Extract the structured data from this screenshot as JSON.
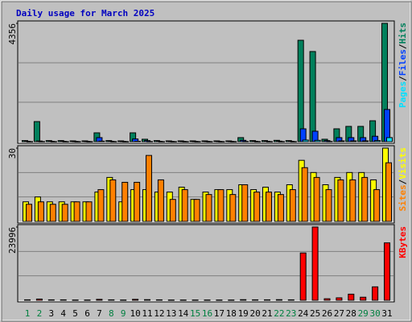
{
  "chart_data": [
    {
      "type": "bar",
      "title": "Daily usage for March 2025",
      "title_color": "#0000c0",
      "ylim": [
        0,
        4356
      ],
      "yticks": [
        4356
      ],
      "legend_separator": "/",
      "series": [
        {
          "name": "Hits",
          "color": "#00805c",
          "values": [
            40,
            740,
            40,
            40,
            30,
            30,
            326,
            40,
            30,
            326,
            90,
            40,
            30,
            30,
            30,
            30,
            30,
            30,
            150,
            40,
            40,
            50,
            40,
            3733,
            3319,
            90,
            474,
            563,
            563,
            770,
            4356
          ]
        },
        {
          "name": "Files",
          "color": "#0040ff",
          "values": [
            15,
            25,
            15,
            15,
            10,
            10,
            150,
            15,
            10,
            100,
            40,
            15,
            10,
            10,
            10,
            10,
            10,
            10,
            50,
            15,
            15,
            20,
            15,
            474,
            385,
            40,
            150,
            150,
            150,
            200,
            1185
          ]
        },
        {
          "name": "Pages",
          "color": "#00e0ff",
          "values": [
            5,
            8,
            5,
            5,
            4,
            4,
            20,
            5,
            4,
            15,
            8,
            5,
            4,
            4,
            4,
            4,
            4,
            4,
            10,
            5,
            5,
            6,
            5,
            60,
            50,
            10,
            30,
            30,
            30,
            40,
            150
          ]
        }
      ]
    },
    {
      "type": "bar",
      "ylim": [
        0,
        30
      ],
      "yticks": [
        30
      ],
      "legend_separator": "/",
      "series": [
        {
          "name": "Visits",
          "color": "#ffff00",
          "values": [
            8,
            10,
            8,
            8,
            8,
            8,
            12,
            18,
            8,
            13,
            13,
            12,
            12,
            14,
            9,
            12,
            13,
            13,
            15,
            13,
            14,
            12,
            15,
            25,
            20,
            15,
            18,
            20,
            20,
            17,
            30
          ]
        },
        {
          "name": "Sites",
          "color": "#ff8000",
          "values": [
            7,
            8,
            7,
            7,
            8,
            8,
            13,
            17,
            16,
            16,
            27,
            17,
            9,
            13,
            9,
            11,
            13,
            11,
            15,
            12,
            12,
            11,
            13,
            22,
            18,
            13,
            17,
            17,
            18,
            13,
            24
          ]
        }
      ]
    },
    {
      "type": "bar",
      "ylim": [
        0,
        23996
      ],
      "yticks": [
        23996
      ],
      "categories": [
        "1",
        "2",
        "3",
        "4",
        "5",
        "6",
        "7",
        "8",
        "9",
        "10",
        "11",
        "12",
        "13",
        "14",
        "15",
        "16",
        "17",
        "18",
        "19",
        "20",
        "21",
        "22",
        "23",
        "24",
        "25",
        "26",
        "27",
        "28",
        "29",
        "30",
        "31"
      ],
      "category_colors": [
        "#008040",
        "#008040",
        "#000000",
        "#000000",
        "#000000",
        "#000000",
        "#000000",
        "#008040",
        "#008040",
        "#000000",
        "#000000",
        "#000000",
        "#000000",
        "#000000",
        "#008040",
        "#008040",
        "#000000",
        "#000000",
        "#000000",
        "#000000",
        "#000000",
        "#008040",
        "#008040",
        "#000000",
        "#000000",
        "#000000",
        "#000000",
        "#000000",
        "#008040",
        "#008040",
        "#000000"
      ],
      "series": [
        {
          "name": "KBytes",
          "color": "#ff0000",
          "values": [
            150,
            400,
            150,
            150,
            100,
            100,
            300,
            150,
            100,
            300,
            200,
            150,
            100,
            100,
            100,
            100,
            100,
            100,
            200,
            150,
            150,
            200,
            150,
            15500,
            23996,
            500,
            800,
            2000,
            1000,
            4400,
            18800
          ]
        }
      ]
    }
  ]
}
